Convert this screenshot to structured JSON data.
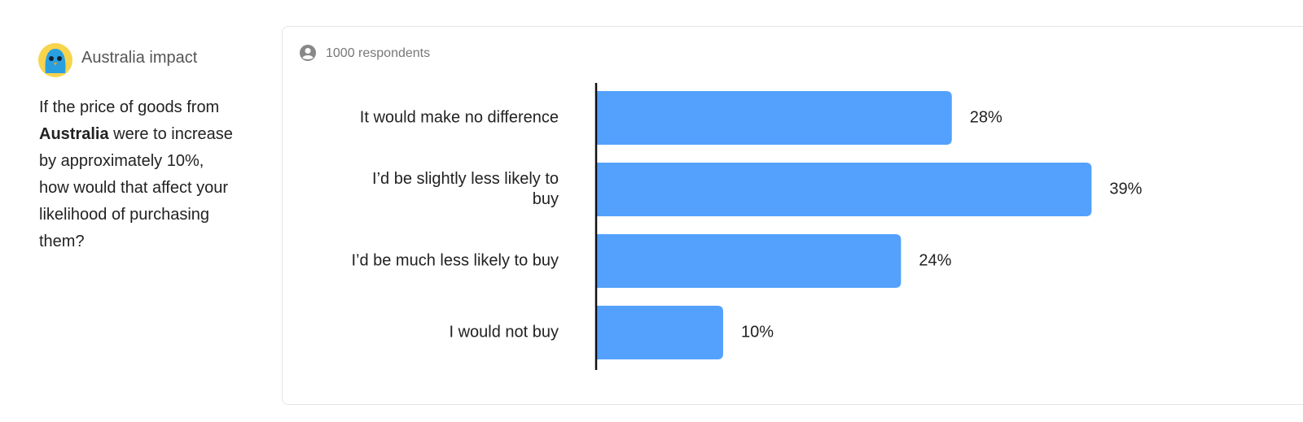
{
  "side_panel": {
    "title": "Australia impact",
    "question": [
      "If the price of goods from ",
      "Australia",
      " were to increase by approximately 10%, how would that affect your likelihood of purchasing them?"
    ]
  },
  "respondents": "1000 respondents",
  "chart_data": {
    "type": "bar",
    "orientation": "horizontal",
    "categories": [
      "It would make no difference",
      "I’d be slightly less likely to buy",
      "I’d be much less likely to buy",
      "I would not buy"
    ],
    "values": [
      28,
      39,
      24,
      10
    ],
    "value_labels": [
      "28%",
      "39%",
      "24%",
      "10%"
    ],
    "color": "#53a1fd"
  }
}
